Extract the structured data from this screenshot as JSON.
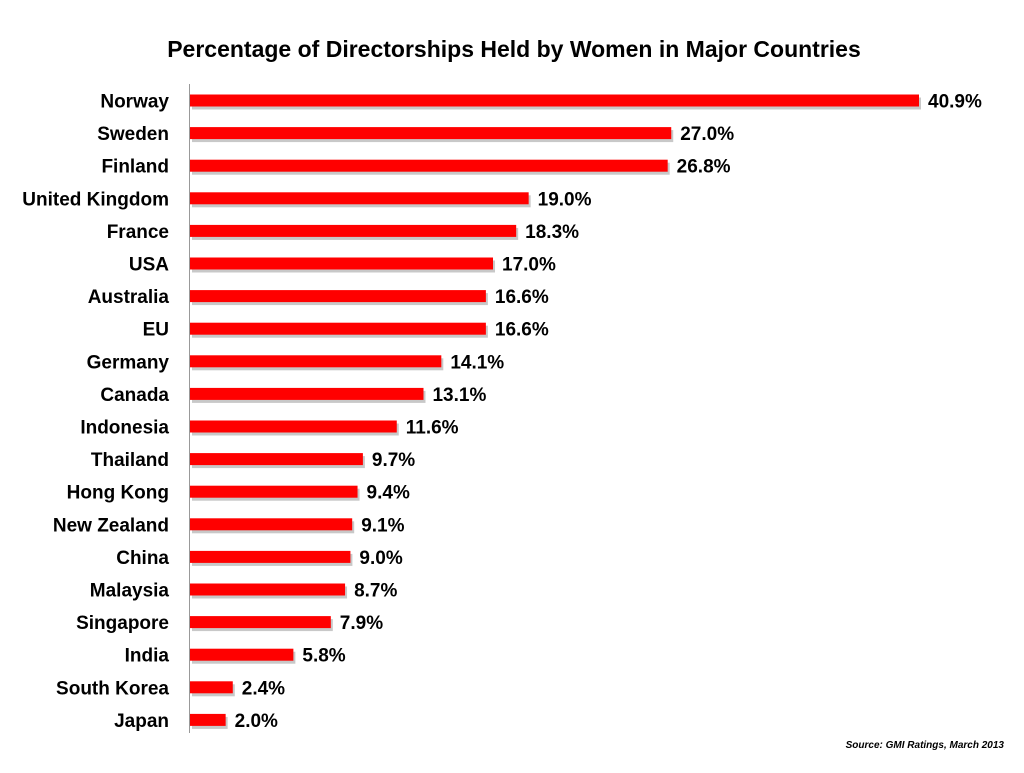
{
  "chart_data": {
    "type": "bar",
    "orientation": "horizontal",
    "title": "Percentage of Directorships Held by Women in Major Countries",
    "source": "Source: GMI Ratings, March 2013",
    "categories": [
      "Norway",
      "Sweden",
      "Finland",
      "United Kingdom",
      "France",
      "USA",
      "Australia",
      "EU",
      "Germany",
      "Canada",
      "Indonesia",
      "Thailand",
      "Hong Kong",
      "New Zealand",
      "China",
      "Malaysia",
      "Singapore",
      "India",
      "South Korea",
      "Japan"
    ],
    "values": [
      40.9,
      27.0,
      26.8,
      19.0,
      18.3,
      17.0,
      16.6,
      16.6,
      14.1,
      13.1,
      11.6,
      9.7,
      9.4,
      9.1,
      9.0,
      8.7,
      7.9,
      5.8,
      2.4,
      2.0
    ],
    "value_labels": [
      "40.9%",
      "27.0%",
      "26.8%",
      "19.0%",
      "18.3%",
      "17.0%",
      "16.6%",
      "16.6%",
      "14.1%",
      "13.1%",
      "11.6%",
      "9.7%",
      "9.4%",
      "9.1%",
      "9.0%",
      "8.7%",
      "7.9%",
      "5.8%",
      "2.4%",
      "2.0%"
    ],
    "xlim": [
      0,
      40.9
    ],
    "grid": false,
    "legend": "none",
    "colors": {
      "bar": "#ff0000",
      "bar_shadow": "#c8c8c8",
      "axis": "#999999",
      "text": "#000000"
    }
  }
}
